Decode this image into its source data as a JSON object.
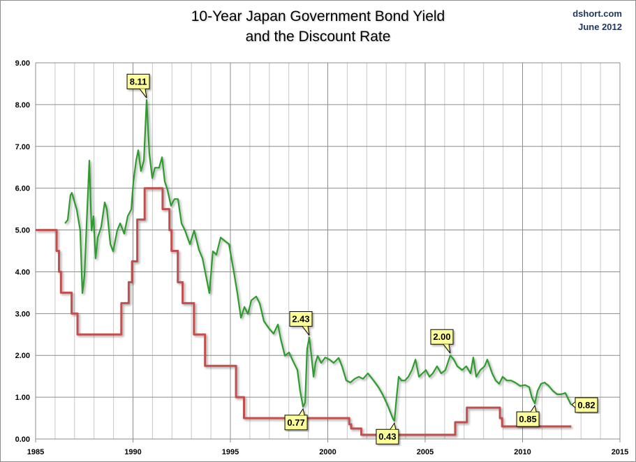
{
  "chart_data": {
    "type": "line",
    "title": "10-Year Japan Government Bond Yield",
    "subtitle": "and the Discount Rate",
    "source": "dshort.com",
    "date": "June 2012",
    "xlabel": "",
    "ylabel": "",
    "xlim": [
      1985,
      2015
    ],
    "ylim": [
      0,
      9
    ],
    "x_ticks": [
      "1985",
      "1990",
      "1995",
      "2000",
      "2005",
      "2010",
      "2015"
    ],
    "y_ticks": [
      "0.00",
      "1.00",
      "2.00",
      "3.00",
      "4.00",
      "5.00",
      "6.00",
      "7.00",
      "8.00",
      "9.00"
    ],
    "grid": true,
    "legend": "none",
    "colors": {
      "bond_yield": "#2e9b2e",
      "discount_rate": "#c0504d",
      "callout_fill": "#ffff99"
    },
    "series": [
      {
        "key": "bond_yield",
        "x": [
          1986.51,
          1986.65,
          1986.79,
          1986.86,
          1987.11,
          1987.29,
          1987.4,
          1987.51,
          1987.62,
          1987.76,
          1987.87,
          1987.97,
          1988.08,
          1988.19,
          1988.37,
          1988.55,
          1988.66,
          1988.84,
          1988.98,
          1989.19,
          1989.34,
          1989.55,
          1989.73,
          1989.91,
          1990.02,
          1990.16,
          1990.27,
          1990.41,
          1990.56,
          1990.7,
          1990.84,
          1990.99,
          1991.13,
          1991.34,
          1991.49,
          1991.63,
          1991.77,
          1991.95,
          1992.13,
          1992.31,
          1992.49,
          1992.67,
          1992.92,
          1993.14,
          1993.39,
          1993.57,
          1993.78,
          1993.92,
          1994.1,
          1994.28,
          1994.5,
          1994.71,
          1994.93,
          1995.18,
          1995.36,
          1995.54,
          1995.72,
          1995.9,
          1996.08,
          1996.33,
          1996.51,
          1996.72,
          1996.97,
          1997.22,
          1997.44,
          1997.58,
          1997.8,
          1998.01,
          1998.23,
          1998.44,
          1998.58,
          1998.73,
          1998.84,
          1998.94,
          1999.05,
          1999.16,
          1999.27,
          1999.37,
          1999.48,
          1999.66,
          1999.87,
          2000.09,
          2000.3,
          2000.56,
          2000.73,
          2000.95,
          2001.16,
          2001.38,
          2001.59,
          2001.81,
          2002.06,
          2002.35,
          2002.6,
          2002.81,
          2003.06,
          2003.35,
          2003.42,
          2003.53,
          2003.64,
          2003.78,
          2003.96,
          2004.14,
          2004.32,
          2004.5,
          2004.68,
          2004.86,
          2005.04,
          2005.22,
          2005.39,
          2005.61,
          2005.82,
          2006.04,
          2006.29,
          2006.47,
          2006.65,
          2006.9,
          2007.11,
          2007.33,
          2007.47,
          2007.62,
          2007.83,
          2008.05,
          2008.19,
          2008.44,
          2008.62,
          2008.8,
          2008.98,
          2009.19,
          2009.41,
          2009.62,
          2009.87,
          2010.13,
          2010.34,
          2010.48,
          2010.63,
          2010.77,
          2010.95,
          2011.13,
          2011.34,
          2011.56,
          2011.77,
          2011.99,
          2012.2,
          2012.35,
          2012.49
        ],
        "y": [
          5.16,
          5.24,
          5.83,
          5.89,
          5.49,
          4.99,
          3.49,
          3.91,
          5.16,
          6.66,
          4.99,
          5.33,
          4.32,
          4.82,
          5.08,
          5.66,
          5.49,
          4.66,
          4.49,
          4.99,
          5.16,
          4.91,
          5.33,
          5.49,
          6.16,
          6.66,
          6.91,
          6.41,
          6.66,
          8.11,
          6.83,
          6.24,
          6.49,
          6.49,
          6.74,
          6.16,
          5.96,
          5.58,
          5.74,
          5.74,
          5.16,
          4.99,
          4.66,
          4.99,
          4.52,
          4.32,
          3.82,
          3.49,
          4.49,
          4.41,
          4.82,
          4.74,
          4.66,
          3.99,
          3.49,
          2.9,
          3.16,
          2.99,
          3.32,
          3.41,
          3.24,
          2.82,
          2.65,
          2.52,
          2.74,
          2.4,
          1.99,
          2.07,
          1.85,
          1.65,
          1.15,
          0.77,
          0.87,
          2.15,
          2.43,
          1.99,
          1.49,
          1.82,
          1.99,
          1.82,
          1.95,
          1.9,
          1.82,
          1.94,
          1.74,
          1.4,
          1.35,
          1.44,
          1.49,
          1.44,
          1.57,
          1.4,
          1.24,
          1.07,
          0.82,
          0.48,
          0.43,
          0.99,
          1.49,
          1.4,
          1.4,
          1.49,
          1.65,
          1.9,
          1.49,
          1.57,
          1.65,
          1.49,
          1.57,
          1.74,
          1.57,
          1.65,
          2.0,
          1.9,
          1.74,
          1.65,
          1.74,
          1.57,
          1.95,
          1.49,
          1.65,
          1.74,
          1.9,
          1.57,
          1.4,
          1.32,
          1.49,
          1.4,
          1.4,
          1.35,
          1.27,
          1.29,
          1.24,
          0.99,
          0.85,
          1.15,
          1.32,
          1.35,
          1.27,
          1.15,
          1.07,
          1.07,
          1.1,
          0.95,
          0.82
        ]
      },
      {
        "key": "discount_rate",
        "step": true,
        "x": [
          1985.0,
          1986.08,
          1986.2,
          1986.3,
          1986.85,
          1987.15,
          1989.4,
          1989.78,
          1989.95,
          1990.22,
          1990.6,
          1991.52,
          1991.87,
          1991.98,
          1992.3,
          1992.55,
          1993.13,
          1993.7,
          1995.29,
          1995.7,
          2001.1,
          2001.2,
          2001.72,
          2006.54,
          2007.14,
          2008.84,
          2008.95,
          2012.5
        ],
        "y": [
          5.0,
          4.5,
          4.0,
          3.5,
          3.0,
          2.5,
          3.25,
          3.75,
          4.25,
          5.25,
          6.0,
          5.5,
          5.0,
          4.5,
          3.75,
          3.25,
          2.5,
          1.75,
          1.0,
          0.5,
          0.35,
          0.25,
          0.1,
          0.4,
          0.75,
          0.5,
          0.3,
          0.3
        ]
      }
    ],
    "annotations": [
      {
        "text": "8.11",
        "x": 1990.7,
        "y": 8.11,
        "placement": "above"
      },
      {
        "text": "2.43",
        "x": 1999.05,
        "y": 2.43,
        "placement": "above"
      },
      {
        "text": "0.77",
        "x": 1998.73,
        "y": 0.77,
        "placement": "below"
      },
      {
        "text": "0.43",
        "x": 2003.42,
        "y": 0.43,
        "placement": "below"
      },
      {
        "text": "2.00",
        "x": 2006.29,
        "y": 2.0,
        "placement": "above"
      },
      {
        "text": "0.85",
        "x": 2010.63,
        "y": 0.85,
        "placement": "below"
      },
      {
        "text": "0.82",
        "x": 2012.49,
        "y": 0.82,
        "placement": "right"
      }
    ]
  }
}
